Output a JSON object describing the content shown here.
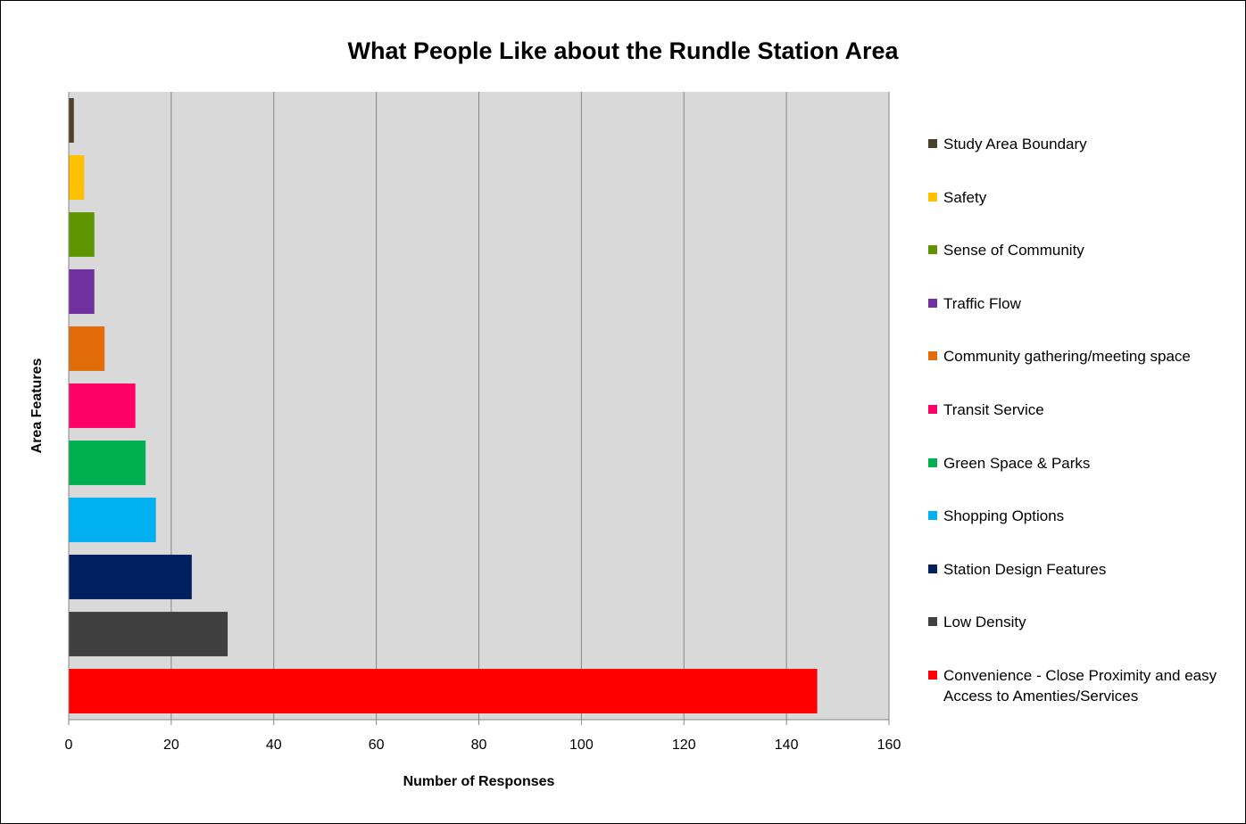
{
  "chart_data": {
    "type": "bar",
    "orientation": "horizontal",
    "title": "What People Like about the Rundle Station Area",
    "xlabel": "Number of Responses",
    "ylabel": "Area Features",
    "xlim": [
      0,
      160
    ],
    "x_ticks": [
      "0",
      "20",
      "40",
      "60",
      "80",
      "100",
      "120",
      "140",
      "160"
    ],
    "grid": "vertical",
    "legend_position": "right",
    "series": [
      {
        "name": "Study Area Boundary",
        "value": 1,
        "color": "#4a4228"
      },
      {
        "name": "Safety",
        "value": 3,
        "color": "#ffc000"
      },
      {
        "name": "Sense of Community",
        "value": 5,
        "color": "#5f9600"
      },
      {
        "name": "Traffic Flow",
        "value": 5,
        "color": "#7030a0"
      },
      {
        "name": "Community gathering/meeting space",
        "value": 7,
        "color": "#e36c0a"
      },
      {
        "name": "Transit Service",
        "value": 13,
        "color": "#ff0066"
      },
      {
        "name": "Green Space & Parks",
        "value": 15,
        "color": "#00b050"
      },
      {
        "name": "Shopping Options",
        "value": 17,
        "color": "#00b0f0"
      },
      {
        "name": "Station Design Features",
        "value": 24,
        "color": "#002060"
      },
      {
        "name": "Low Density",
        "value": 31,
        "color": "#404040"
      },
      {
        "name": "Convenience - Close Proximity and easy Access to Amenties/Services",
        "value": 146,
        "color": "#ff0000"
      }
    ]
  }
}
